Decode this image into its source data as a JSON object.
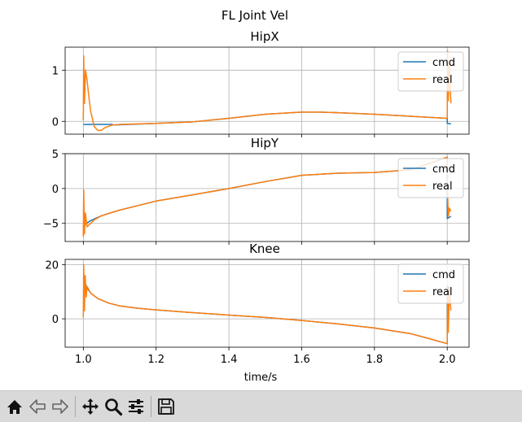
{
  "figure_title": "FL Joint Vel",
  "toolbar": {
    "items": [
      {
        "name": "home-icon"
      },
      {
        "name": "back-arrow-icon"
      },
      {
        "name": "forward-arrow-icon"
      },
      {
        "sep": true
      },
      {
        "name": "pan-move-icon"
      },
      {
        "name": "zoom-magnifier-icon"
      },
      {
        "name": "configure-subplots-icon"
      },
      {
        "sep": true
      },
      {
        "name": "save-floppy-icon"
      }
    ]
  },
  "colors": {
    "cmd": "#1f77b4",
    "real": "#ff7f0e",
    "grid": "#b0b0b0"
  },
  "chart_data": [
    {
      "type": "line",
      "title": "HipX",
      "xlabel": "",
      "ylabel": "",
      "xlim": [
        0.95,
        2.06
      ],
      "ylim": [
        -0.25,
        1.45
      ],
      "xticks": [
        1.0,
        1.2,
        1.4,
        1.6,
        1.8,
        2.0
      ],
      "yticks": [
        0,
        1
      ],
      "grid": true,
      "legend": "upper-right",
      "series": [
        {
          "name": "cmd",
          "color": "#1f77b4",
          "x": [
            1.0,
            1.08,
            1.08,
            1.2,
            1.3,
            1.4,
            1.5,
            1.6,
            1.65,
            1.7,
            1.8,
            1.9,
            2.0,
            2.0,
            2.01
          ],
          "y": [
            -0.06,
            -0.06,
            -0.07,
            -0.04,
            -0.01,
            0.06,
            0.14,
            0.18,
            0.18,
            0.17,
            0.14,
            0.1,
            0.06,
            -0.04,
            -0.05
          ]
        },
        {
          "name": "real",
          "color": "#ff7f0e",
          "x": [
            1.0,
            1.001,
            1.003,
            1.006,
            1.01,
            1.015,
            1.02,
            1.03,
            1.04,
            1.05,
            1.06,
            1.08,
            1.1,
            1.2,
            1.3,
            1.4,
            1.5,
            1.6,
            1.65,
            1.7,
            1.8,
            1.9,
            2.0,
            2.001,
            2.003,
            2.006,
            2.01
          ],
          "y": [
            0.02,
            1.28,
            0.35,
            1.0,
            0.82,
            0.5,
            0.2,
            -0.1,
            -0.18,
            -0.17,
            -0.12,
            -0.07,
            -0.06,
            -0.04,
            -0.01,
            0.06,
            0.14,
            0.18,
            0.18,
            0.17,
            0.14,
            0.1,
            0.06,
            1.38,
            0.4,
            1.1,
            0.35
          ]
        }
      ]
    },
    {
      "type": "line",
      "title": "HipY",
      "xlabel": "",
      "ylabel": "",
      "xlim": [
        0.95,
        2.06
      ],
      "ylim": [
        -7.6,
        5.0
      ],
      "xticks": [
        1.0,
        1.2,
        1.4,
        1.6,
        1.8,
        2.0
      ],
      "yticks": [
        -5,
        0,
        5
      ],
      "grid": true,
      "legend": "upper-right",
      "series": [
        {
          "name": "cmd",
          "color": "#1f77b4",
          "x": [
            1.0,
            1.02,
            1.05,
            1.1,
            1.2,
            1.3,
            1.4,
            1.5,
            1.6,
            1.7,
            1.8,
            1.9,
            2.0,
            2.0,
            2.01
          ],
          "y": [
            -5.3,
            -4.6,
            -3.9,
            -3.1,
            -1.8,
            -0.9,
            0.0,
            1.0,
            1.9,
            2.2,
            2.3,
            2.7,
            4.5,
            -4.3,
            -4.0
          ]
        },
        {
          "name": "real",
          "color": "#ff7f0e",
          "x": [
            1.0,
            1.001,
            1.003,
            1.006,
            1.01,
            1.02,
            1.03,
            1.05,
            1.1,
            1.2,
            1.3,
            1.4,
            1.5,
            1.6,
            1.7,
            1.8,
            1.9,
            2.0,
            2.001,
            2.003,
            2.006,
            2.01
          ],
          "y": [
            -6.9,
            -0.2,
            -6.5,
            -3.5,
            -5.5,
            -5.0,
            -4.5,
            -3.9,
            -3.1,
            -1.8,
            -0.9,
            0.0,
            1.0,
            1.9,
            2.2,
            2.3,
            2.7,
            4.5,
            -0.5,
            -4.0,
            -2.8,
            -3.3
          ]
        }
      ]
    },
    {
      "type": "line",
      "title": "Knee",
      "xlabel": "time/s",
      "ylabel": "",
      "xlim": [
        0.95,
        2.06
      ],
      "ylim": [
        -10.5,
        22.0
      ],
      "xticks": [
        1.0,
        1.2,
        1.4,
        1.6,
        1.8,
        2.0
      ],
      "xticklabels": [
        "1.0",
        "1.2",
        "1.4",
        "1.6",
        "1.8",
        "2.0"
      ],
      "yticks": [
        0,
        20
      ],
      "grid": true,
      "legend": "upper-right",
      "series": [
        {
          "name": "cmd",
          "color": "#1f77b4",
          "x": [
            1.0,
            1.01,
            1.02,
            1.04,
            1.07,
            1.1,
            1.15,
            1.2,
            1.3,
            1.4,
            1.5,
            1.6,
            1.7,
            1.8,
            1.9,
            1.95,
            2.0,
            2.0,
            2.01
          ],
          "y": [
            15.0,
            11.5,
            9.5,
            7.5,
            5.8,
            4.8,
            3.9,
            3.3,
            2.3,
            1.4,
            0.5,
            -0.6,
            -1.9,
            -3.4,
            -5.5,
            -7.3,
            -9.2,
            12.0,
            10.0
          ]
        },
        {
          "name": "real",
          "color": "#ff7f0e",
          "x": [
            1.0,
            1.001,
            1.003,
            1.005,
            1.008,
            1.01,
            1.02,
            1.04,
            1.07,
            1.1,
            1.15,
            1.2,
            1.3,
            1.4,
            1.5,
            1.6,
            1.7,
            1.8,
            1.9,
            1.95,
            2.0,
            2.001,
            2.003,
            2.006,
            2.01
          ],
          "y": [
            0.5,
            20.0,
            3.0,
            16.0,
            8.0,
            12.0,
            9.5,
            7.5,
            5.8,
            4.8,
            3.9,
            3.3,
            2.3,
            1.4,
            0.5,
            -0.6,
            -1.9,
            -3.4,
            -5.5,
            -7.3,
            -9.2,
            9.0,
            -5.0,
            12.0,
            3.0
          ]
        }
      ]
    }
  ]
}
